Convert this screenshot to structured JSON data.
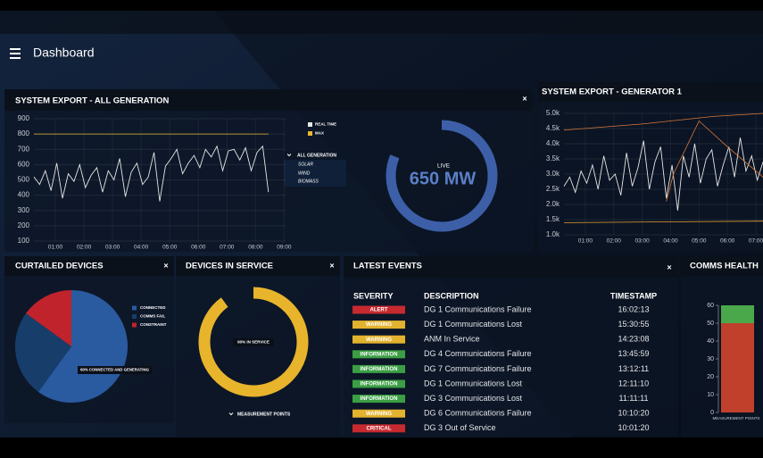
{
  "header": {
    "title": "Dashboard"
  },
  "export_all": {
    "title": "SYSTEM EXPORT - ALL GENERATION",
    "chart": {
      "type": "line",
      "xlim": [
        0.25,
        9.05
      ],
      "xticks": [
        {
          "value": 1,
          "label": "01:00"
        },
        {
          "value": 2,
          "label": "02:00"
        },
        {
          "value": 3,
          "label": "03:00"
        },
        {
          "value": 4,
          "label": "04:00"
        },
        {
          "value": 5,
          "label": "05:00"
        },
        {
          "value": 6,
          "label": "06:00"
        },
        {
          "value": 7,
          "label": "07:00"
        },
        {
          "value": 8,
          "label": "08:00"
        },
        {
          "value": 9,
          "label": "09:00"
        }
      ],
      "ylim": [
        100,
        900
      ],
      "yticks": [
        100,
        200,
        300,
        400,
        500,
        600,
        700,
        800,
        900
      ],
      "grid": true,
      "series": [
        {
          "name": "REAL TIME",
          "color": "#e6e6e6",
          "x": [
            0.25,
            0.45,
            0.65,
            0.85,
            1.05,
            1.25,
            1.45,
            1.65,
            1.85,
            2.05,
            2.25,
            2.45,
            2.65,
            2.85,
            3.05,
            3.25,
            3.45,
            3.65,
            3.85,
            4.05,
            4.25,
            4.45,
            4.65,
            4.85,
            5.05,
            5.25,
            5.45,
            5.65,
            5.85,
            6.05,
            6.25,
            6.45,
            6.65,
            6.85,
            7.05,
            7.25,
            7.45,
            7.65,
            7.85,
            8.05,
            8.25,
            8.45
          ],
          "values": [
            520,
            470,
            560,
            430,
            610,
            380,
            540,
            490,
            600,
            450,
            530,
            580,
            420,
            560,
            500,
            640,
            390,
            550,
            610,
            470,
            520,
            680,
            360,
            590,
            640,
            700,
            540,
            610,
            660,
            580,
            700,
            650,
            720,
            560,
            690,
            700,
            630,
            710,
            560,
            680,
            720,
            420
          ]
        },
        {
          "name": "MAX",
          "color": "#e8b830",
          "x": [
            0.25,
            8.45
          ],
          "values": [
            800,
            800
          ]
        }
      ]
    },
    "dropdown": {
      "selected": "ALL GENERATION",
      "options": [
        "SOLAR",
        "WIND",
        "BIOMASS"
      ]
    },
    "gauge": {
      "label": "LIVE",
      "value": 650,
      "value_label": "650 MW",
      "range": [
        0,
        800
      ],
      "color": "#3d5fa8"
    }
  },
  "export_gen1": {
    "title": "SYSTEM EXPORT - GENERATOR 1",
    "chart": {
      "type": "line",
      "xlim": [
        0.25,
        7.25
      ],
      "xticks": [
        {
          "value": 1,
          "label": "01:00"
        },
        {
          "value": 2,
          "label": "02:00"
        },
        {
          "value": 3,
          "label": "03:00"
        },
        {
          "value": 4,
          "label": "04:00"
        },
        {
          "value": 5,
          "label": "05:00"
        },
        {
          "value": 6,
          "label": "06:00"
        },
        {
          "value": 7,
          "label": "07:00"
        }
      ],
      "ylim": [
        1000,
        5000
      ],
      "yticks": [
        {
          "value": 1000,
          "label": "1.0k"
        },
        {
          "value": 1500,
          "label": "1.5k"
        },
        {
          "value": 2000,
          "label": "2.0k"
        },
        {
          "value": 2500,
          "label": "2.5k"
        },
        {
          "value": 3000,
          "label": "3.0k"
        },
        {
          "value": 3500,
          "label": "3.5k"
        },
        {
          "value": 4000,
          "label": "4.0k"
        },
        {
          "value": 4500,
          "label": "4.5k"
        },
        {
          "value": 5000,
          "label": "5.0k"
        }
      ],
      "grid": true,
      "series": [
        {
          "color": "#e6e6e6",
          "x": [
            0.25,
            0.45,
            0.65,
            0.85,
            1.05,
            1.25,
            1.45,
            1.65,
            1.85,
            2.05,
            2.25,
            2.45,
            2.65,
            2.85,
            3.05,
            3.25,
            3.45,
            3.65,
            3.85,
            4.05,
            4.25,
            4.45,
            4.65,
            4.85,
            5.05,
            5.25,
            5.45,
            5.65,
            5.85,
            6.05,
            6.25,
            6.45,
            6.65,
            6.85,
            7.05,
            7.25
          ],
          "values": [
            2600,
            2900,
            2400,
            3100,
            2700,
            3300,
            2500,
            3600,
            2800,
            3000,
            2300,
            3700,
            2600,
            3200,
            4100,
            2500,
            3400,
            3900,
            2200,
            3300,
            1800,
            3600,
            2900,
            4000,
            2700,
            3500,
            3800,
            2600,
            3300,
            3900,
            2900,
            4200,
            3100,
            3600,
            2800,
            3400
          ]
        },
        {
          "color": "#d9783a",
          "x": [
            0.25,
            3.0,
            5.5,
            7.25
          ],
          "values": [
            4450,
            4650,
            4900,
            5000
          ]
        },
        {
          "color": "#d9783a",
          "x": [
            3.85,
            4.1,
            5.0,
            6.0,
            7.25
          ],
          "values": [
            2100,
            3000,
            4750,
            3900,
            2900
          ]
        },
        {
          "color": "#e8a030",
          "x": [
            0.25,
            7.25
          ],
          "values": [
            1400,
            1450
          ]
        }
      ]
    }
  },
  "curtailed": {
    "title": "CURTAILED DEVICES",
    "chart": {
      "type": "pie",
      "categories": [
        "CONNECTED",
        "COMMS FAIL",
        "CONSTRAINT"
      ],
      "values": [
        60,
        25,
        15
      ],
      "colors": [
        "#2a5aa0",
        "#173d6b",
        "#c0232c"
      ],
      "annotation": "60% CONNECTED AND GENERATING"
    }
  },
  "devices": {
    "title": "DEVICES IN SERVICE",
    "gauge": {
      "value": 90,
      "value_label": "90% IN SERVICE",
      "range": [
        0,
        100
      ],
      "color": "#e8b42c"
    },
    "selector": "MEASUREMENT POINTS"
  },
  "events": {
    "title": "LATEST EVENTS",
    "columns": [
      "SEVERITY",
      "DESCRIPTION",
      "TIMESTAMP"
    ],
    "severity_colors": {
      "ALERT": "#c62a2f",
      "WARNING": "#e3b22e",
      "INFORMATION": "#3b9e44",
      "CRITICAL": "#c62a2f"
    },
    "rows": [
      [
        "ALERT",
        "DG 1 Communications Failure",
        "16:02:13"
      ],
      [
        "WARNING",
        "DG 1 Communications Lost",
        "15:30:55"
      ],
      [
        "WARNING",
        "ANM In Service",
        "14:23:08"
      ],
      [
        "INFORMATION",
        "DG 4 Communications Failure",
        "13:45:59"
      ],
      [
        "INFORMATION",
        "DG 7 Communications Failure",
        "13:12:11"
      ],
      [
        "INFORMATION",
        "DG 1 Communications Lost",
        "12:11:10"
      ],
      [
        "INFORMATION",
        "DG 3 Communications Lost",
        "11:11:11"
      ],
      [
        "WARNING",
        "DG 6 Communications Failure",
        "10:10:20"
      ],
      [
        "CRITICAL",
        "DG 3 Out of Service",
        "10:01:20"
      ]
    ]
  },
  "comms": {
    "title": "COMMS HEALTH",
    "chart": {
      "type": "bar",
      "stacked": true,
      "categories": [
        "MEASUREMENT POINTS"
      ],
      "ylim": [
        0,
        60
      ],
      "yticks": [
        0,
        10,
        20,
        30,
        40,
        50,
        60
      ],
      "series": [
        {
          "color": "#c0402c",
          "values": [
            50
          ]
        },
        {
          "color": "#4aa84a",
          "values": [
            10
          ]
        }
      ]
    }
  }
}
